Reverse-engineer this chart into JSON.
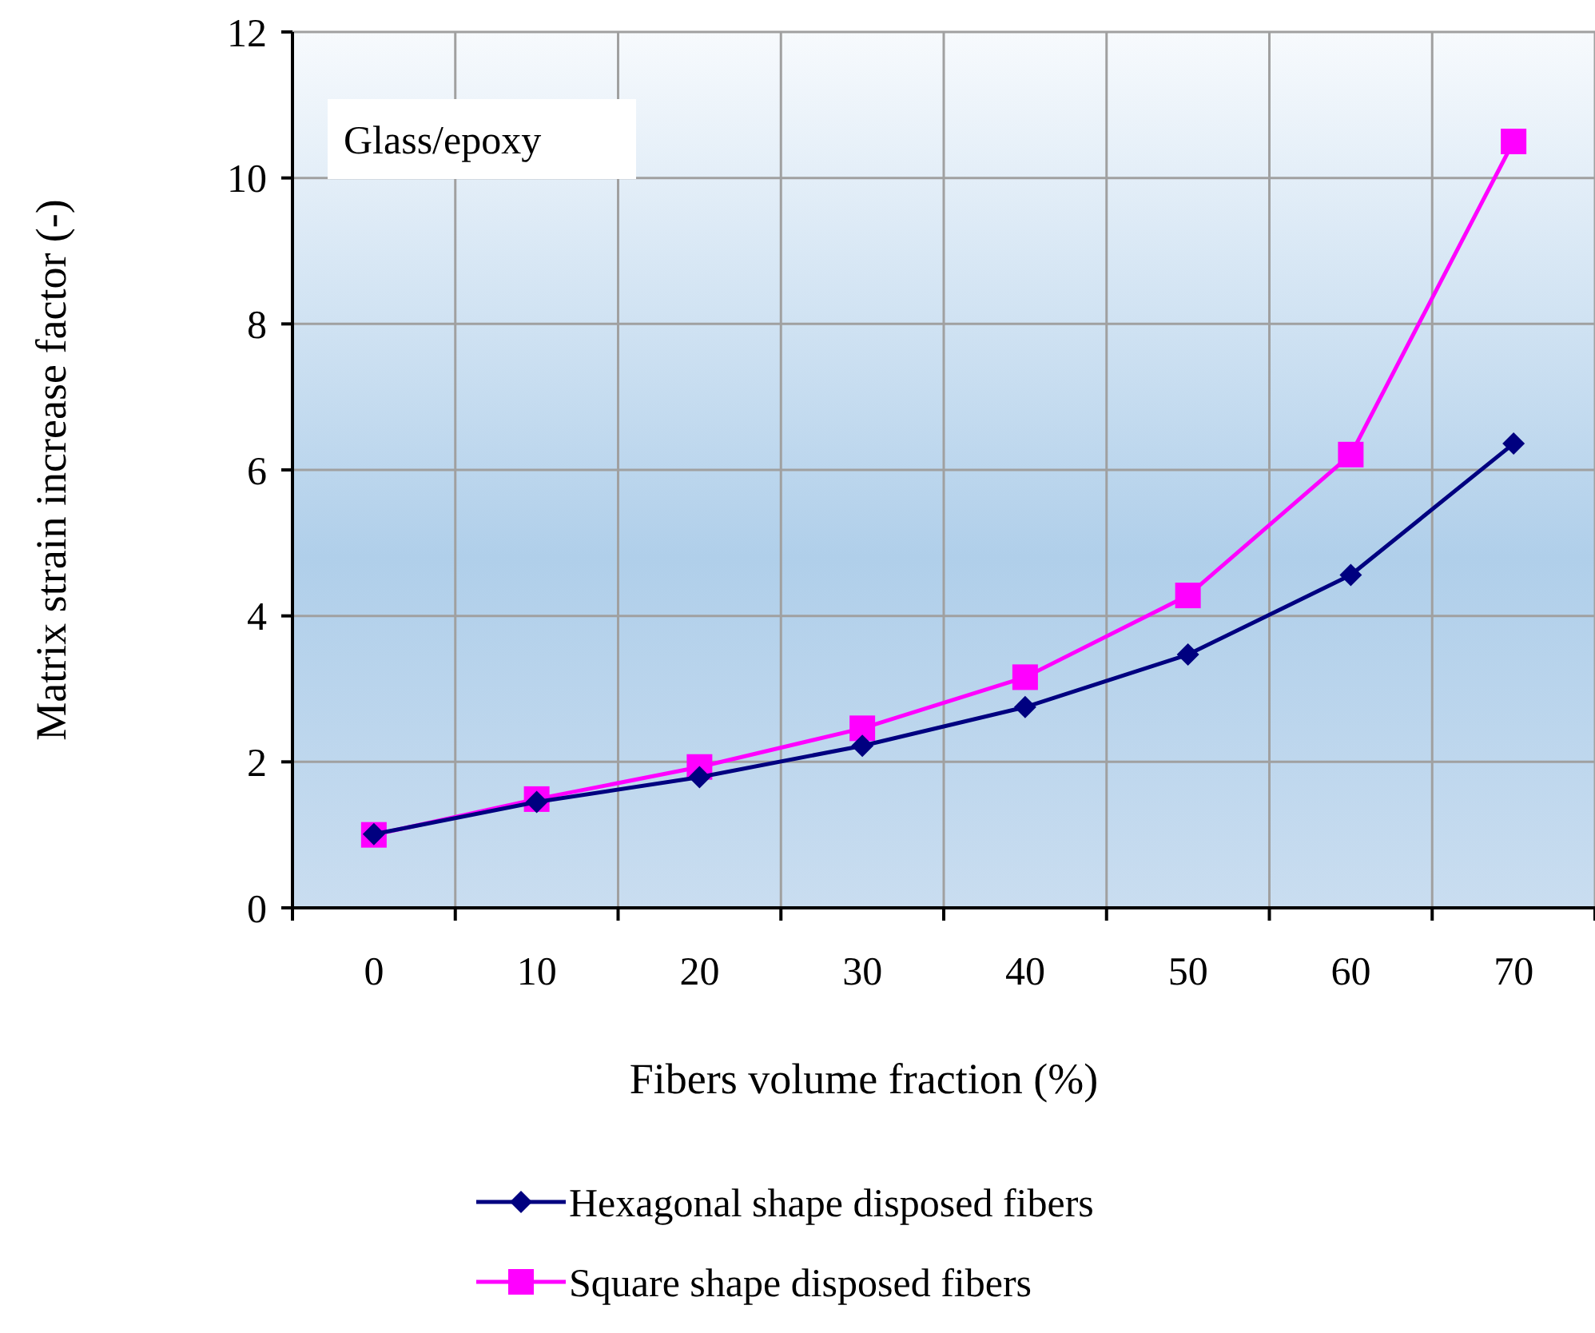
{
  "chart_data": {
    "type": "line",
    "xlabel": "Fibers volume fraction (%)",
    "ylabel": "Matrix strain increase factor (-)",
    "categories": [
      "0",
      "10",
      "20",
      "30",
      "40",
      "50",
      "60",
      "70"
    ],
    "series": [
      {
        "name": "Hexagonal shape disposed fibers",
        "color": "#000080",
        "marker": "diamond",
        "values": [
          1.01,
          1.45,
          1.79,
          2.22,
          2.75,
          3.47,
          4.56,
          6.36
        ]
      },
      {
        "name": "Square shape disposed fibers",
        "color": "#ff00ff",
        "marker": "square",
        "values": [
          1.0,
          1.49,
          1.93,
          2.46,
          3.16,
          4.28,
          6.21,
          10.5
        ]
      }
    ],
    "ylim": [
      0,
      12
    ],
    "yticks": [
      0,
      2,
      4,
      6,
      8,
      10,
      12
    ],
    "grid": true,
    "legend": "bottom",
    "line_style": "solid",
    "annotations": [
      "Glass/epoxy"
    ]
  }
}
